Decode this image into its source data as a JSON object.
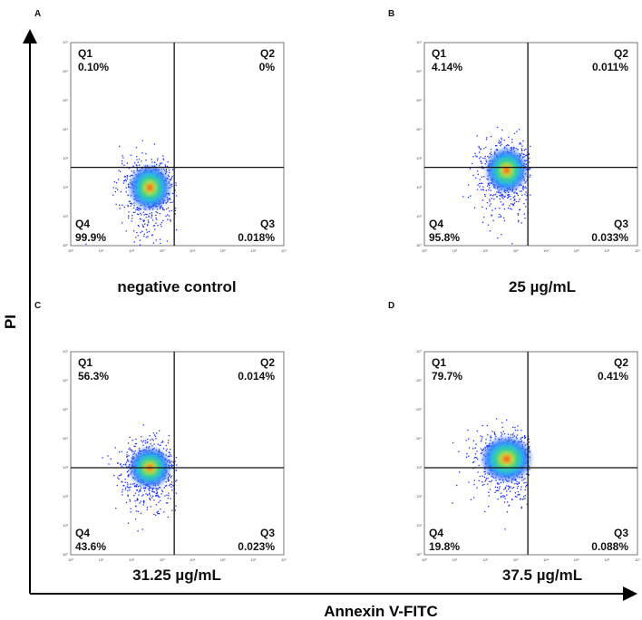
{
  "axes": {
    "ylabel": "PI",
    "xlabel": "Annexin V-FITC"
  },
  "chart_data": [
    {
      "type": "scatter",
      "panel": "A",
      "title": "negative control",
      "xscale": "log",
      "yscale": "log",
      "xlim": [
        0,
        7
      ],
      "ylim": [
        0,
        7
      ],
      "ticks": [
        "10⁰",
        "10¹",
        "10²",
        "10³",
        "10⁴",
        "10⁵",
        "10⁶",
        "10⁷"
      ],
      "gate": {
        "x": 3.4,
        "y": 2.7
      },
      "cloud": {
        "cx": 2.6,
        "cy": 2.0,
        "sx": 0.45,
        "sy": 0.55
      },
      "quadrants": {
        "Q1": "0.10%",
        "Q2": "0%",
        "Q3": "0.018%",
        "Q4": "99.9%"
      }
    },
    {
      "type": "scatter",
      "panel": "B",
      "title": "25 µg/mL",
      "xscale": "log",
      "yscale": "log",
      "xlim": [
        0,
        7
      ],
      "ylim": [
        0,
        7
      ],
      "ticks": [
        "10⁰",
        "10¹",
        "10²",
        "10³",
        "10⁴",
        "10⁵",
        "10⁶",
        "10⁷"
      ],
      "gate": {
        "x": 3.4,
        "y": 2.7
      },
      "cloud": {
        "cx": 2.7,
        "cy": 2.6,
        "sx": 0.45,
        "sy": 0.55
      },
      "quadrants": {
        "Q1": "4.14%",
        "Q2": "0.011%",
        "Q3": "0.033%",
        "Q4": "95.8%"
      }
    },
    {
      "type": "scatter",
      "panel": "C",
      "title": "31.25 µg/mL",
      "xscale": "log",
      "yscale": "log",
      "xlim": [
        0,
        7
      ],
      "ylim": [
        0,
        7
      ],
      "ticks": [
        "10⁰",
        "10¹",
        "10²",
        "10³",
        "10⁴",
        "10⁵",
        "10⁶",
        "10⁷"
      ],
      "gate": {
        "x": 3.4,
        "y": 3.0
      },
      "cloud": {
        "cx": 2.6,
        "cy": 3.0,
        "sx": 0.45,
        "sy": 0.5
      },
      "quadrants": {
        "Q1": "56.3%",
        "Q2": "0.014%",
        "Q3": "0.023%",
        "Q4": "43.6%"
      }
    },
    {
      "type": "scatter",
      "panel": "D",
      "title": "37.5 µg/mL",
      "xscale": "log",
      "yscale": "log",
      "xlim": [
        0,
        7
      ],
      "ylim": [
        0,
        7
      ],
      "ticks": [
        "10⁰",
        "10¹",
        "10²",
        "10³",
        "10⁴",
        "10⁵",
        "10⁶",
        "10⁷"
      ],
      "gate": {
        "x": 3.4,
        "y": 3.0
      },
      "cloud": {
        "cx": 2.7,
        "cy": 3.3,
        "sx": 0.55,
        "sy": 0.55
      },
      "quadrants": {
        "Q1": "79.7%",
        "Q2": "0.41%",
        "Q3": "0.088%",
        "Q4": "19.8%"
      }
    }
  ]
}
